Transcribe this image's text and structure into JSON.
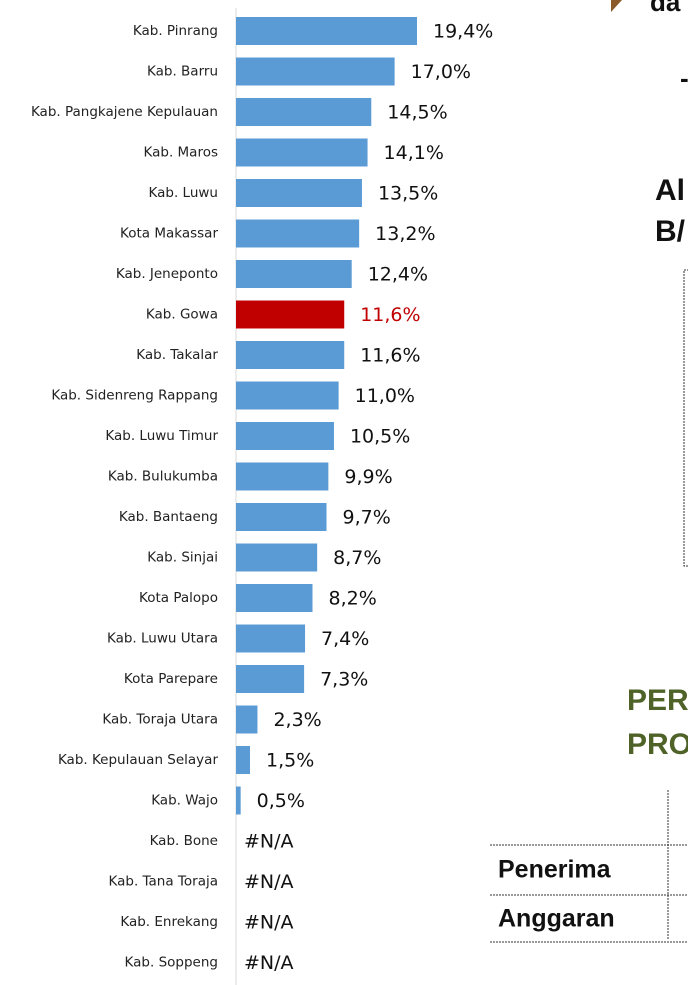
{
  "chart_data": {
    "type": "barh",
    "categories": [
      "Kab. Pinrang",
      "Kab. Barru",
      "Kab. Pangkajene Kepulauan",
      "Kab. Maros",
      "Kab. Luwu",
      "Kota Makassar",
      "Kab. Jeneponto",
      "Kab. Gowa",
      "Kab. Takalar",
      "Kab. Sidenreng Rappang",
      "Kab. Luwu Timur",
      "Kab. Bulukumba",
      "Kab. Bantaeng",
      "Kab. Sinjai",
      "Kota Palopo",
      "Kab. Luwu Utara",
      "Kota Parepare",
      "Kab. Toraja Utara",
      "Kab. Kepulauan Selayar",
      "Kab. Wajo",
      "Kab. Bone",
      "Kab. Tana Toraja",
      "Kab. Enrekang",
      "Kab. Soppeng"
    ],
    "values": [
      19.4,
      17.0,
      14.5,
      14.1,
      13.5,
      13.2,
      12.4,
      11.6,
      11.6,
      11.0,
      10.5,
      9.9,
      9.7,
      8.7,
      8.2,
      7.4,
      7.3,
      2.3,
      1.5,
      0.5,
      null,
      null,
      null,
      null
    ],
    "value_labels": [
      "19,4%",
      "17,0%",
      "14,5%",
      "14,1%",
      "13,5%",
      "13,2%",
      "12,4%",
      "11,6%",
      "11,6%",
      "11,0%",
      "10,5%",
      "9,9%",
      "9,7%",
      "8,7%",
      "8,2%",
      "7,4%",
      "7,3%",
      "2,3%",
      "1,5%",
      "0,5%",
      "#N/A",
      "#N/A",
      "#N/A",
      "#N/A"
    ],
    "colors": [
      "#5b9bd5",
      "#5b9bd5",
      "#5b9bd5",
      "#5b9bd5",
      "#5b9bd5",
      "#5b9bd5",
      "#5b9bd5",
      "#c00000",
      "#5b9bd5",
      "#5b9bd5",
      "#5b9bd5",
      "#5b9bd5",
      "#5b9bd5",
      "#5b9bd5",
      "#5b9bd5",
      "#5b9bd5",
      "#5b9bd5",
      "#5b9bd5",
      "#5b9bd5",
      "#5b9bd5",
      "#5b9bd5",
      "#5b9bd5",
      "#5b9bd5",
      "#5b9bd5"
    ]
  },
  "fragments": {
    "top": "da",
    "dash": "-",
    "a1": "Al",
    "a2": "B/",
    "p1": "PER",
    "p2": "PRO",
    "r1": "Penerima",
    "r2": "Anggaran"
  }
}
